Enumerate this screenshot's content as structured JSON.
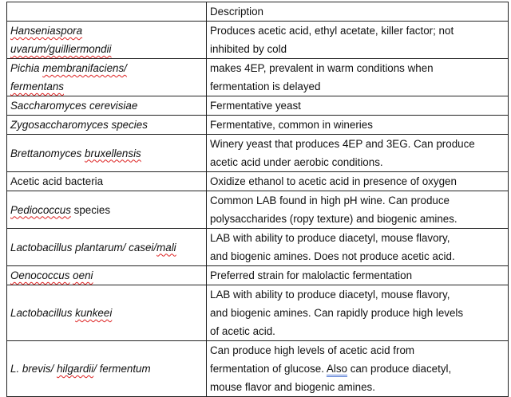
{
  "header": {
    "col1": "",
    "col2": "Description"
  },
  "rows": [
    {
      "name": [
        [
          {
            "t": "Hanseniaspora",
            "i": 1,
            "s": 1
          }
        ],
        [
          {
            "t": "uvarum/guilliermondii",
            "i": 1,
            "s": 1
          }
        ]
      ],
      "desc": [
        "Produces acetic acid, ethyl acetate, killer factor; not",
        "inhibited by cold"
      ]
    },
    {
      "name": [
        [
          {
            "t": "Pichia ",
            "i": 1
          },
          {
            "t": "membranifaciens/",
            "i": 1,
            "s": 1
          }
        ],
        [
          {
            "t": "fermentans",
            "i": 1,
            "s": 1
          }
        ]
      ],
      "desc": [
        "makes 4EP, prevalent in warm conditions when",
        "fermentation is delayed"
      ]
    },
    {
      "name": [
        [
          {
            "t": "Saccharomyces cerevisiae",
            "i": 1
          }
        ]
      ],
      "desc": [
        "Fermentative yeast"
      ]
    },
    {
      "name": [
        [
          {
            "t": "Zygosaccharomyces species",
            "i": 1
          }
        ]
      ],
      "desc": [
        "Fermentative, common in wineries"
      ]
    },
    {
      "name": [
        [
          {
            "t": "Brettanomyces ",
            "i": 1
          },
          {
            "t": "bruxellensis",
            "i": 1,
            "s": 1
          }
        ]
      ],
      "desc": [
        "Winery yeast that produces 4EP and 3EG. Can produce",
        "acetic acid under aerobic conditions."
      ]
    },
    {
      "name": [
        [
          {
            "t": "Acetic acid bacteria"
          }
        ]
      ],
      "desc": [
        "Oxidize ethanol to acetic acid in presence of oxygen"
      ]
    },
    {
      "name": [
        [
          {
            "t": "Pediococcus",
            "i": 1,
            "s": 1
          },
          {
            "t": " species"
          }
        ]
      ],
      "desc": [
        "Common LAB found in high pH wine. Can produce",
        "polysaccharides (ropy texture) and biogenic amines."
      ]
    },
    {
      "name": [
        [
          {
            "t": "Lactobacillus plantarum/ casei/",
            "i": 1
          },
          {
            "t": "mali",
            "i": 1,
            "s": 1
          }
        ]
      ],
      "desc": [
        "LAB with ability to produce diacetyl, mouse flavory,",
        "and biogenic amines. Does not produce acetic acid."
      ]
    },
    {
      "name": [
        [
          {
            "t": "Oenococcus",
            "i": 1,
            "s": 1
          },
          {
            "t": " ",
            "i": 1
          },
          {
            "t": "oeni",
            "i": 1,
            "s": 1
          }
        ]
      ],
      "desc": [
        "Preferred strain for malolactic fermentation"
      ]
    },
    {
      "name": [
        [
          {
            "t": "Lactobacillus ",
            "i": 1
          },
          {
            "t": "kunkeei",
            "i": 1,
            "s": 1
          }
        ]
      ],
      "desc": [
        "LAB with ability to produce diacetyl, mouse flavory,",
        "and biogenic amines. Can rapidly produce high levels",
        "of acetic acid."
      ]
    },
    {
      "name": [
        [
          {
            "t": "L. brevis/ ",
            "i": 1
          },
          {
            "t": "hilgardii",
            "i": 1,
            "s": 1
          },
          {
            "t": "/ fermentum",
            "i": 1
          }
        ]
      ],
      "desc": [
        "Can produce high levels of acetic acid from",
        "fermentation of glucose. [Also] can produce diacetyl,",
        "mouse flavor and biogenic amines."
      ]
    }
  ]
}
